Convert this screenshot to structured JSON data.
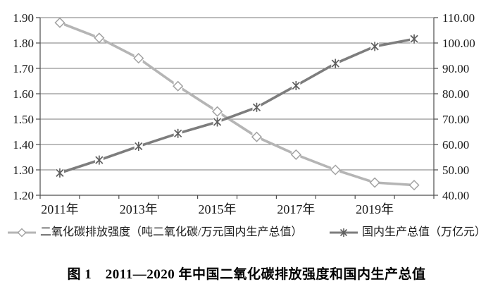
{
  "chart_data": {
    "type": "line",
    "title": "图 1　2011—2020 年中国二氧化碳排放强度和国内生产总值",
    "categories": [
      "2011年",
      "2012年",
      "2013年",
      "2014年",
      "2015年",
      "2016年",
      "2017年",
      "2018年",
      "2019年",
      "2020年"
    ],
    "x_label_interval": 2,
    "series": [
      {
        "name": "二氧化碳排放强度（吨二氧化碳/万元国内生产总值）",
        "axis": "left",
        "marker": "diamond",
        "line_color": "#b5b5b5",
        "marker_color": "#a2a2a2",
        "values": [
          1.88,
          1.82,
          1.74,
          1.63,
          1.53,
          1.43,
          1.36,
          1.3,
          1.25,
          1.24
        ]
      },
      {
        "name": "国内生产总值（万亿元）",
        "axis": "right",
        "marker": "star",
        "line_color": "#7d7d7d",
        "marker_color": "#5f5f5f",
        "values": [
          48.79,
          53.86,
          59.3,
          64.36,
          68.89,
          74.64,
          83.2,
          91.93,
          98.65,
          101.6
        ]
      }
    ],
    "left_axis": {
      "min": 1.2,
      "max": 1.9,
      "step": 0.1,
      "tick_labels": [
        "1.20",
        "1.30",
        "1.40",
        "1.50",
        "1.60",
        "1.70",
        "1.80",
        "1.90"
      ]
    },
    "right_axis": {
      "min": 40,
      "max": 110,
      "step": 10,
      "tick_labels": [
        "40.00",
        "50.00",
        "60.00",
        "70.00",
        "80.00",
        "90.00",
        "100.00",
        "110.00"
      ]
    },
    "grid": "horizontal",
    "grid_color": "#7a7a7a",
    "axis_color": "#4d4d4d",
    "text_color": "#1a1a1a",
    "legend_position": "bottom"
  }
}
